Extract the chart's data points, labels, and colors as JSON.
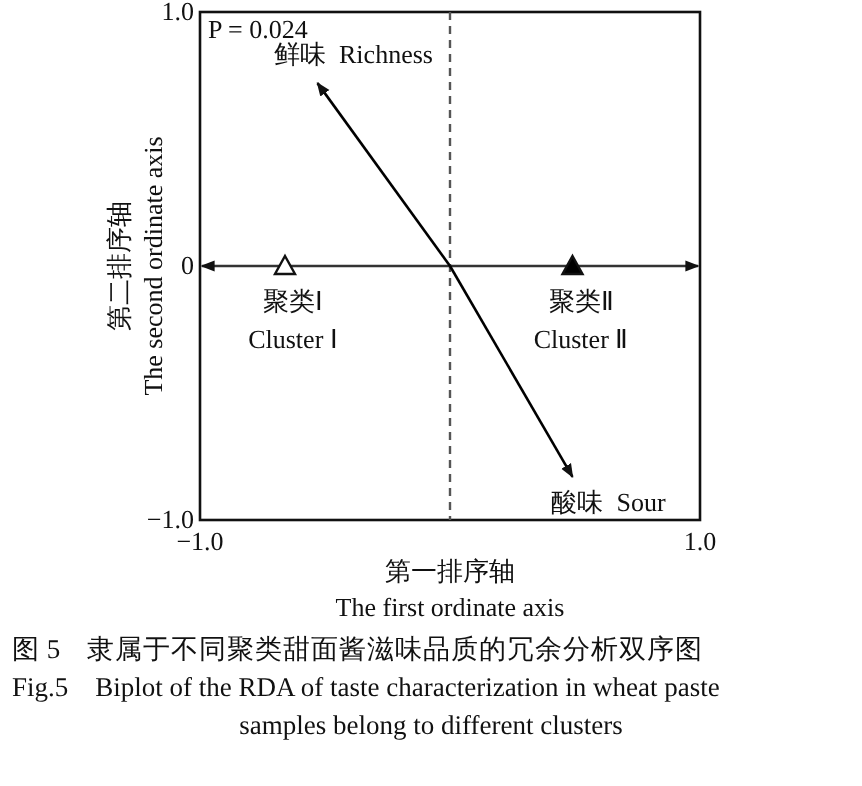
{
  "chart_data": {
    "type": "scatter",
    "xlabel": "第一排序轴\nThe first ordinate axis",
    "ylabel": "第二排序轴\nThe second ordinate axis",
    "xlim": [
      -1,
      1
    ],
    "ylim": [
      -1,
      1
    ],
    "xticks": [
      {
        "value": -1,
        "label": "−1.0"
      },
      {
        "value": 1,
        "label": "1.0"
      }
    ],
    "yticks": [
      {
        "value": -1,
        "label": "−1.0"
      },
      {
        "value": 0,
        "label": "0"
      },
      {
        "value": 1,
        "label": "1.0"
      }
    ],
    "grid": false,
    "legend": false,
    "series": [
      {
        "name": "聚类Ⅰ\nCluster Ⅰ",
        "type": "scatter",
        "marker": "triangle",
        "color": "#ffffff",
        "x": [
          -0.66
        ],
        "values": [
          0
        ]
      },
      {
        "name": "聚类Ⅱ\nCluster Ⅱ",
        "type": "scatter",
        "marker": "triangle",
        "color": "#000000",
        "x": [
          0.49
        ],
        "values": [
          0
        ]
      },
      {
        "name": "鲜味  Richness",
        "type": "line",
        "color": "#000000",
        "x": [
          0,
          -0.53
        ],
        "values": [
          0,
          0.72
        ]
      },
      {
        "name": "酸味  Sour",
        "type": "line",
        "color": "#000000",
        "x": [
          0,
          0.49
        ],
        "values": [
          0,
          -0.83
        ]
      }
    ],
    "ref_lines": [
      {
        "axis": "x",
        "value": 0,
        "line_style": "dashed",
        "color": "#555555"
      },
      {
        "axis": "y",
        "value": 0,
        "line_style": "solid",
        "color": "#333333"
      }
    ],
    "annotations": [
      "P = 0.024",
      "图 5    隶属于不同聚类甜面酱滋味品质的冗余分析双序图",
      "Fig.5    Biplot of the RDA of taste characterization in wheat paste",
      "samples belong to different clusters"
    ]
  }
}
